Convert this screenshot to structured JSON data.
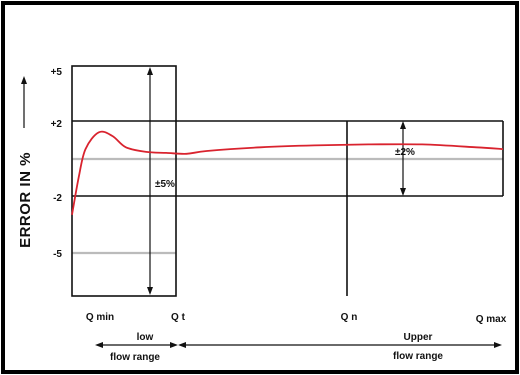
{
  "chart_data": {
    "type": "line",
    "ylabel": "ERROR IN %",
    "y_ticks": [
      "+5",
      "+2",
      "-2",
      "-5"
    ],
    "ylim": [
      -8.5,
      5
    ],
    "x_markers": [
      "Q min",
      "Q t",
      "Q n",
      "Q max"
    ],
    "ranges": [
      {
        "label_line1": "low",
        "label_line2": "flow range"
      },
      {
        "label_line1": "Upper",
        "label_line2": "flow range"
      }
    ],
    "tolerance_labels": {
      "low": "±5%",
      "upper": "±2%"
    },
    "bands": [
      {
        "from": "Q min",
        "to": "Q t",
        "min": -5,
        "max": 5
      },
      {
        "from": "Q t",
        "to": "Q max",
        "min": -2,
        "max": 2
      }
    ],
    "series": [
      {
        "color": "#d9232e",
        "points": [
          [
            0.0,
            -3.0
          ],
          [
            0.05,
            -1.0
          ],
          [
            0.1,
            0.5
          ],
          [
            0.2,
            1.4
          ],
          [
            0.3,
            1.2
          ],
          [
            0.4,
            0.6
          ],
          [
            0.55,
            0.35
          ],
          [
            0.7,
            0.3
          ],
          [
            0.85,
            0.25
          ],
          [
            1.0,
            0.4
          ],
          [
            1.4,
            0.6
          ],
          [
            1.8,
            0.7
          ],
          [
            2.2,
            0.75
          ],
          [
            2.6,
            0.75
          ],
          [
            3.0,
            0.6
          ],
          [
            3.2,
            0.5
          ]
        ]
      }
    ],
    "reference_lines": [
      0.5,
      -5
    ],
    "colors": {
      "curve": "#d9232e",
      "grid": "#111111",
      "reference": "#bbbbbb"
    }
  }
}
